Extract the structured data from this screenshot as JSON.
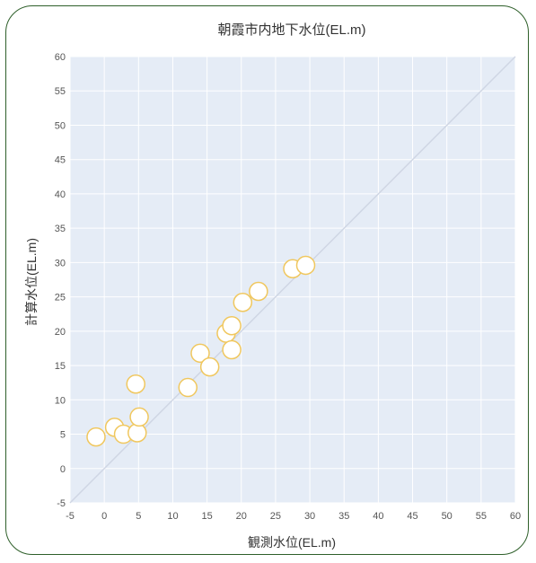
{
  "chart_data": {
    "type": "scatter",
    "title": "朝霞市内地下水位(EL.m)",
    "xlabel": "観測水位(EL.m)",
    "ylabel": "計算水位(EL.m)",
    "xlim": [
      -5,
      60
    ],
    "ylim": [
      -5,
      60
    ],
    "xticks": [
      -5,
      0,
      5,
      10,
      15,
      20,
      25,
      30,
      35,
      40,
      45,
      50,
      55,
      60
    ],
    "yticks": [
      -5,
      0,
      5,
      10,
      15,
      20,
      25,
      30,
      35,
      40,
      45,
      50,
      55,
      60
    ],
    "reference_line": "y = x",
    "grid": true,
    "colors": {
      "plot_background": "#e5ecf6",
      "grid": "#ffffff",
      "marker_fill": "#ffffff",
      "marker_edge": "#f0c75e",
      "reference_line": "#cfd6e4",
      "frame": "#2e5f2a"
    },
    "points": [
      {
        "x": -1.2,
        "y": 4.6
      },
      {
        "x": 1.5,
        "y": 6.0
      },
      {
        "x": 2.8,
        "y": 5.0
      },
      {
        "x": 4.8,
        "y": 5.2
      },
      {
        "x": 4.6,
        "y": 12.3
      },
      {
        "x": 5.1,
        "y": 7.5
      },
      {
        "x": 12.2,
        "y": 11.8
      },
      {
        "x": 14.0,
        "y": 16.8
      },
      {
        "x": 15.4,
        "y": 14.8
      },
      {
        "x": 17.8,
        "y": 19.7
      },
      {
        "x": 18.6,
        "y": 20.8
      },
      {
        "x": 18.6,
        "y": 17.3
      },
      {
        "x": 20.2,
        "y": 24.2
      },
      {
        "x": 22.5,
        "y": 25.8
      },
      {
        "x": 27.5,
        "y": 29.1
      },
      {
        "x": 29.4,
        "y": 29.6
      }
    ]
  }
}
